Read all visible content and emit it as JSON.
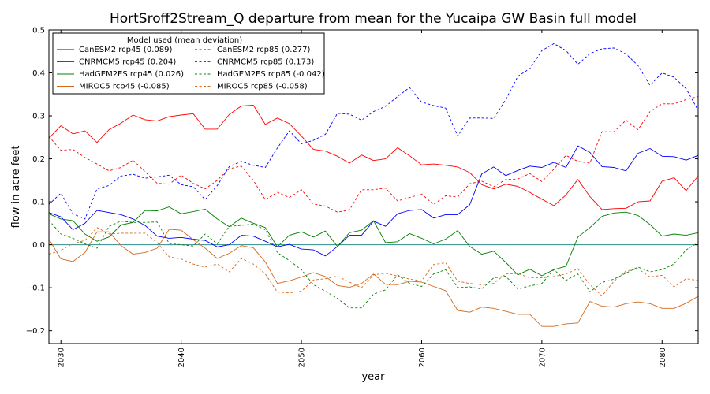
{
  "chart_data": {
    "type": "line",
    "title": "HortSroff2Stream_Q departure from mean for the Yucaipa GW Basin full model",
    "xlabel": "year",
    "ylabel": "flow in acre feet",
    "xlim": [
      2029,
      2083
    ],
    "ylim": [
      -0.23,
      0.5
    ],
    "xticks": [
      2030,
      2040,
      2050,
      2060,
      2070,
      2080
    ],
    "yticks": [
      -0.2,
      -0.1,
      0.0,
      0.1,
      0.2,
      0.3,
      0.4,
      0.5
    ],
    "ytick_labels": [
      "−0.2",
      "−0.1",
      "0.0",
      "0.1",
      "0.2",
      "0.3",
      "0.4",
      "0.5"
    ],
    "zero_line": true,
    "legend": {
      "title": "Model used (mean deviation)",
      "position": "top-left",
      "columns": 2
    },
    "x": [
      2029,
      2030,
      2031,
      2032,
      2033,
      2034,
      2035,
      2036,
      2037,
      2038,
      2039,
      2040,
      2041,
      2042,
      2043,
      2044,
      2045,
      2046,
      2047,
      2048,
      2049,
      2050,
      2051,
      2052,
      2053,
      2054,
      2055,
      2056,
      2057,
      2058,
      2059,
      2060,
      2061,
      2062,
      2063,
      2064,
      2065,
      2066,
      2067,
      2068,
      2069,
      2070,
      2071,
      2072,
      2073,
      2074,
      2075,
      2076,
      2077,
      2078,
      2079,
      2080,
      2081,
      2082,
      2083
    ],
    "series": [
      {
        "name": "CanESM2 rcp45 (0.089)",
        "color": "#0000ff",
        "dash": "solid",
        "values": [
          0.075,
          0.065,
          0.035,
          0.05,
          0.08,
          0.075,
          0.07,
          0.06,
          0.045,
          0.02,
          0.015,
          0.017,
          0.013,
          0.01,
          -0.005,
          0.0,
          0.022,
          0.02,
          0.008,
          -0.005,
          0.001,
          -0.01,
          -0.012,
          -0.026,
          -0.004,
          0.022,
          0.022,
          0.055,
          0.043,
          0.072,
          0.08,
          0.082,
          0.062,
          0.07,
          0.07,
          0.093,
          0.165,
          0.181,
          0.161,
          0.173,
          0.183,
          0.18,
          0.192,
          0.18,
          0.23,
          0.215,
          0.182,
          0.18,
          0.172,
          0.213,
          0.224,
          0.206,
          0.205,
          0.197,
          0.208
        ]
      },
      {
        "name": "CNRMCM5 rcp45 (0.204)",
        "color": "#ff0000",
        "dash": "solid",
        "values": [
          0.248,
          0.277,
          0.258,
          0.265,
          0.238,
          0.268,
          0.283,
          0.302,
          0.291,
          0.288,
          0.298,
          0.302,
          0.305,
          0.269,
          0.269,
          0.303,
          0.323,
          0.325,
          0.28,
          0.295,
          0.282,
          0.253,
          0.222,
          0.218,
          0.206,
          0.19,
          0.209,
          0.196,
          0.2,
          0.226,
          0.207,
          0.186,
          0.188,
          0.185,
          0.181,
          0.168,
          0.14,
          0.13,
          0.141,
          0.136,
          0.122,
          0.106,
          0.091,
          0.116,
          0.152,
          0.112,
          0.082,
          0.084,
          0.085,
          0.1,
          0.102,
          0.148,
          0.156,
          0.126,
          0.16
        ]
      },
      {
        "name": "HadGEM2ES rcp45 (0.026)",
        "color": "#008000",
        "dash": "solid",
        "values": [
          0.072,
          0.06,
          0.056,
          0.025,
          0.008,
          0.018,
          0.046,
          0.052,
          0.08,
          0.079,
          0.088,
          0.072,
          0.077,
          0.083,
          0.06,
          0.042,
          0.062,
          0.05,
          0.04,
          -0.005,
          0.022,
          0.03,
          0.018,
          0.032,
          -0.004,
          0.028,
          0.034,
          0.056,
          0.005,
          0.007,
          0.026,
          0.015,
          0.002,
          0.013,
          0.033,
          -0.004,
          -0.022,
          -0.015,
          -0.041,
          -0.07,
          -0.057,
          -0.072,
          -0.058,
          -0.05,
          0.018,
          0.04,
          0.066,
          0.074,
          0.076,
          0.068,
          0.047,
          0.02,
          0.025,
          0.022,
          0.028
        ]
      },
      {
        "name": "MIROC5 rcp45 (-0.085)",
        "color": "#d2691e",
        "dash": "solid",
        "values": [
          0.013,
          -0.033,
          -0.039,
          -0.018,
          0.03,
          0.03,
          -0.002,
          -0.022,
          -0.018,
          -0.008,
          0.036,
          0.034,
          0.012,
          -0.008,
          -0.032,
          -0.02,
          -0.002,
          -0.007,
          -0.04,
          -0.09,
          -0.084,
          -0.075,
          -0.065,
          -0.074,
          -0.095,
          -0.099,
          -0.09,
          -0.068,
          -0.092,
          -0.093,
          -0.085,
          -0.087,
          -0.097,
          -0.107,
          -0.153,
          -0.157,
          -0.145,
          -0.148,
          -0.155,
          -0.162,
          -0.162,
          -0.19,
          -0.19,
          -0.184,
          -0.182,
          -0.132,
          -0.143,
          -0.145,
          -0.137,
          -0.133,
          -0.137,
          -0.148,
          -0.148,
          -0.136,
          -0.12
        ]
      },
      {
        "name": "CanESM2 rcp85 (0.277)",
        "color": "#0000ff",
        "dash": "dashed",
        "values": [
          0.094,
          0.12,
          0.072,
          0.06,
          0.13,
          0.138,
          0.16,
          0.164,
          0.155,
          0.158,
          0.162,
          0.14,
          0.135,
          0.105,
          0.138,
          0.182,
          0.194,
          0.185,
          0.18,
          0.225,
          0.265,
          0.235,
          0.243,
          0.257,
          0.306,
          0.304,
          0.29,
          0.31,
          0.322,
          0.345,
          0.366,
          0.332,
          0.324,
          0.318,
          0.253,
          0.295,
          0.295,
          0.294,
          0.338,
          0.392,
          0.41,
          0.452,
          0.468,
          0.452,
          0.42,
          0.445,
          0.456,
          0.458,
          0.444,
          0.417,
          0.371,
          0.4,
          0.39,
          0.363,
          0.313
        ]
      },
      {
        "name": "CNRMCM5 rcp85 (0.173)",
        "color": "#ff0000",
        "dash": "dashed",
        "values": [
          0.252,
          0.22,
          0.222,
          0.203,
          0.188,
          0.172,
          0.18,
          0.197,
          0.17,
          0.143,
          0.141,
          0.162,
          0.143,
          0.13,
          0.15,
          0.177,
          0.183,
          0.15,
          0.105,
          0.122,
          0.11,
          0.128,
          0.095,
          0.09,
          0.076,
          0.081,
          0.128,
          0.128,
          0.132,
          0.102,
          0.11,
          0.118,
          0.094,
          0.114,
          0.111,
          0.142,
          0.148,
          0.135,
          0.152,
          0.153,
          0.166,
          0.147,
          0.176,
          0.208,
          0.194,
          0.19,
          0.263,
          0.263,
          0.29,
          0.268,
          0.31,
          0.328,
          0.328,
          0.338,
          0.345
        ]
      },
      {
        "name": "HadGEM2ES rcp85 (-0.042)",
        "color": "#008000",
        "dash": "dashed",
        "values": [
          0.057,
          0.025,
          0.015,
          0.002,
          -0.008,
          0.043,
          0.055,
          0.052,
          0.052,
          0.053,
          0.003,
          0.0,
          -0.003,
          0.025,
          0.002,
          0.043,
          0.045,
          0.048,
          0.035,
          -0.018,
          -0.037,
          -0.058,
          -0.093,
          -0.108,
          -0.125,
          -0.147,
          -0.147,
          -0.115,
          -0.105,
          -0.07,
          -0.09,
          -0.097,
          -0.068,
          -0.058,
          -0.1,
          -0.098,
          -0.103,
          -0.077,
          -0.073,
          -0.103,
          -0.096,
          -0.09,
          -0.058,
          -0.083,
          -0.068,
          -0.11,
          -0.088,
          -0.08,
          -0.066,
          -0.052,
          -0.063,
          -0.058,
          -0.045,
          -0.012,
          0.005
        ]
      },
      {
        "name": "MIROC5 rcp85 (-0.058)",
        "color": "#d2691e",
        "dash": "dashed",
        "values": [
          -0.022,
          -0.013,
          0.003,
          0.01,
          0.04,
          0.025,
          0.027,
          0.027,
          0.027,
          0.005,
          -0.028,
          -0.033,
          -0.045,
          -0.052,
          -0.045,
          -0.063,
          -0.032,
          -0.045,
          -0.068,
          -0.11,
          -0.112,
          -0.108,
          -0.082,
          -0.079,
          -0.073,
          -0.087,
          -0.1,
          -0.07,
          -0.066,
          -0.073,
          -0.08,
          -0.084,
          -0.046,
          -0.042,
          -0.085,
          -0.09,
          -0.093,
          -0.09,
          -0.068,
          -0.067,
          -0.077,
          -0.077,
          -0.074,
          -0.068,
          -0.056,
          -0.093,
          -0.119,
          -0.085,
          -0.061,
          -0.056,
          -0.075,
          -0.071,
          -0.098,
          -0.079,
          -0.083
        ]
      }
    ]
  }
}
